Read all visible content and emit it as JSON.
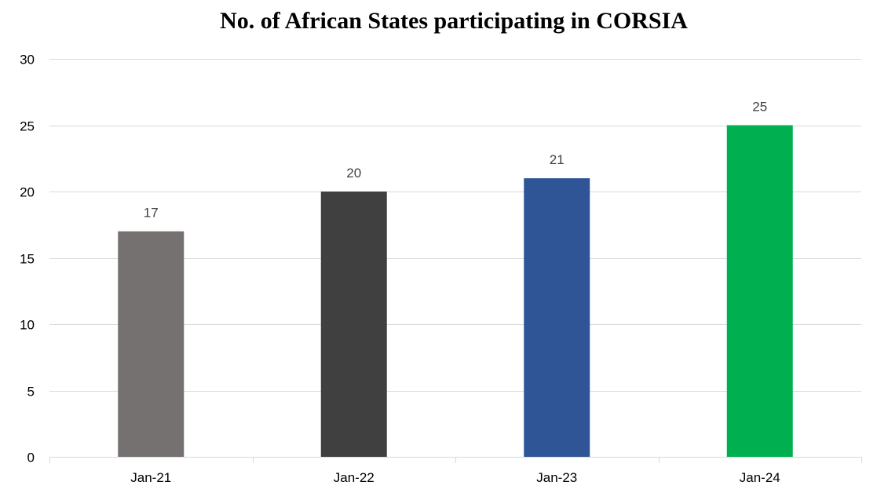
{
  "chart_data": {
    "type": "bar",
    "title": "No. of African States participating in CORSIA",
    "xlabel": "",
    "ylabel": "",
    "categories": [
      "Jan-21",
      "Jan-22",
      "Jan-23",
      "Jan-24"
    ],
    "values": [
      17,
      20,
      21,
      25
    ],
    "bar_colors": [
      "#767171",
      "#404040",
      "#2F5597",
      "#00B050"
    ],
    "ylim": [
      0,
      30
    ],
    "yticks": [
      0,
      5,
      10,
      15,
      20,
      25,
      30
    ],
    "data_labels": true,
    "grid": true,
    "legend": "none"
  }
}
